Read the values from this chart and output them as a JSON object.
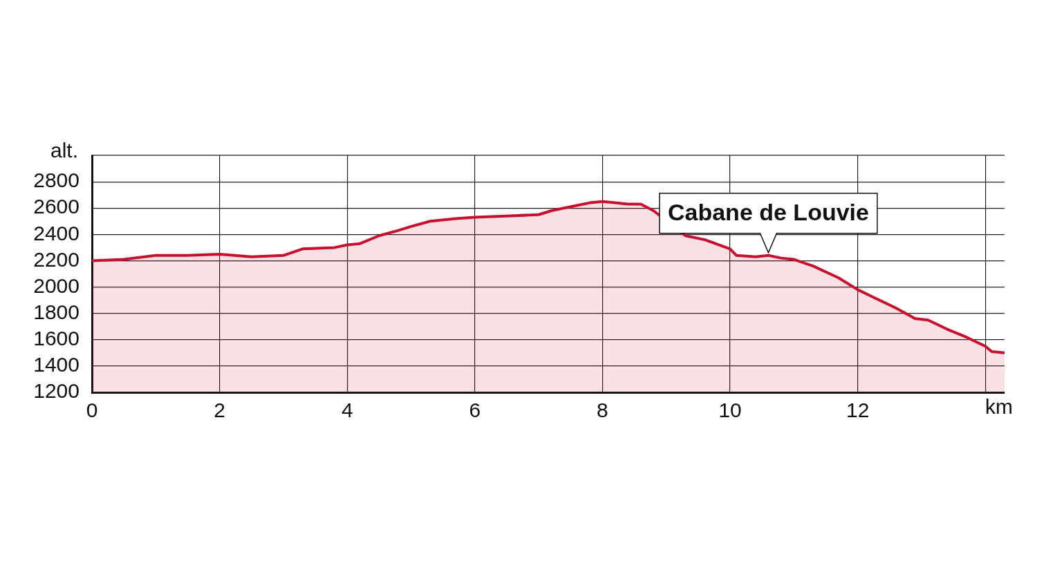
{
  "chart_data": {
    "type": "area",
    "ylabel": "alt.",
    "xlabel": "km",
    "x": [
      0,
      0.5,
      1,
      1.5,
      2,
      2.5,
      3,
      3.3,
      3.8,
      4,
      4.2,
      4.5,
      4.8,
      5,
      5.3,
      5.7,
      6,
      6.5,
      7,
      7.2,
      7.5,
      7.8,
      8,
      8.2,
      8.4,
      8.6,
      8.8,
      9,
      9.3,
      9.6,
      10,
      10.1,
      10.4,
      10.6,
      10.8,
      11,
      11.3,
      11.7,
      12,
      12.3,
      12.6,
      12.9,
      13.1,
      13.4,
      13.7,
      14,
      14.1,
      14.3
    ],
    "series": [
      {
        "color": "#c8102e",
        "values": [
          2200,
          2210,
          2240,
          2240,
          2250,
          2230,
          2240,
          2290,
          2300,
          2320,
          2330,
          2390,
          2430,
          2460,
          2500,
          2520,
          2530,
          2540,
          2550,
          2580,
          2610,
          2640,
          2650,
          2640,
          2630,
          2630,
          2580,
          null,
          2390,
          2360,
          2290,
          2240,
          2230,
          2240,
          2220,
          2210,
          2160,
          2070,
          1980,
          1910,
          1840,
          1760,
          1750,
          1680,
          1620,
          1550,
          1510,
          1500
        ]
      }
    ],
    "xlim": [
      0,
      14.3
    ],
    "xticks": [
      0,
      2,
      4,
      6,
      8,
      10,
      12,
      {
        "value": 14,
        "label": null
      }
    ],
    "ylim": [
      1200,
      3000
    ],
    "yticks": [
      1200,
      1400,
      1600,
      1800,
      2000,
      2200,
      2400,
      2600,
      2800,
      {
        "value": 3000,
        "label": null
      }
    ],
    "grid": true,
    "marker": "none",
    "line_style": "solid",
    "annotations": [
      {
        "text": "Cabane de Louvie",
        "x": 10.6,
        "y": 2240
      }
    ]
  }
}
